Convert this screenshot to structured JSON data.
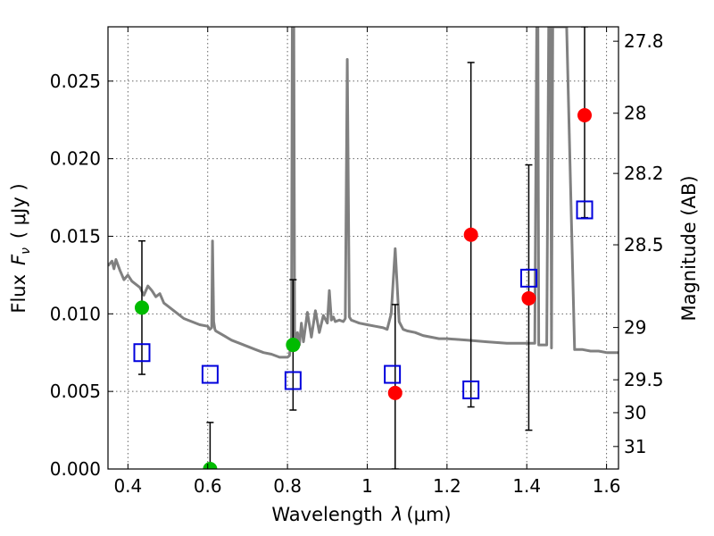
{
  "chart_data": {
    "type": "scatter",
    "xlabel_text": "Wavelength",
    "xlabel_symbol": "λ",
    "xlabel_unit": "(μm)",
    "ylabel_left_text": "Flux",
    "ylabel_left_symbol": "F",
    "ylabel_left_sub": "ν",
    "ylabel_left_unit": "( μJy )",
    "ylabel_right": "Magnitude (AB)",
    "xlim": [
      0.35,
      1.63
    ],
    "ylim": [
      0.0,
      0.0285
    ],
    "grid": true,
    "x_ticks": [
      0.4,
      0.6,
      0.8,
      1.0,
      1.2,
      1.4,
      1.6
    ],
    "x_tick_labels": [
      "0.4",
      "0.6",
      "0.8",
      "1",
      "1.2",
      "1.4",
      "1.6"
    ],
    "y_ticks": [
      0.0,
      0.005,
      0.01,
      0.015,
      0.02,
      0.025
    ],
    "y_tick_labels": [
      "0.000",
      "0.005",
      "0.010",
      "0.015",
      "0.020",
      "0.025"
    ],
    "right_ticks": [
      {
        "label": "27.8",
        "flux": 0.02757
      },
      {
        "label": "28",
        "flux": 0.02293
      },
      {
        "label": "28.2",
        "flux": 0.01905
      },
      {
        "label": "28.5",
        "flux": 0.01445
      },
      {
        "label": "29",
        "flux": 0.00912
      },
      {
        "label": "29.5",
        "flux": 0.00575
      },
      {
        "label": "30",
        "flux": 0.00363
      },
      {
        "label": "31",
        "flux": 0.00145
      }
    ],
    "series": [
      {
        "marker": "circle",
        "color": "#00bb00",
        "points": [
          {
            "x": 0.435,
            "y": 0.0104
          },
          {
            "x": 0.606,
            "y": 0.0
          },
          {
            "x": 0.814,
            "y": 0.008
          }
        ]
      },
      {
        "marker": "circle",
        "color": "#ff0000",
        "points": [
          {
            "x": 1.07,
            "y": 0.0049
          },
          {
            "x": 1.26,
            "y": 0.0151
          },
          {
            "x": 1.405,
            "y": 0.011
          },
          {
            "x": 1.545,
            "y": 0.0228
          }
        ]
      },
      {
        "marker": "open-square",
        "color": "#0000dd",
        "points": [
          {
            "x": 0.435,
            "y": 0.0075
          },
          {
            "x": 0.606,
            "y": 0.0061
          },
          {
            "x": 0.814,
            "y": 0.0057
          },
          {
            "x": 1.063,
            "y": 0.0061
          },
          {
            "x": 1.26,
            "y": 0.0051
          },
          {
            "x": 1.405,
            "y": 0.0123
          },
          {
            "x": 1.545,
            "y": 0.0167
          }
        ]
      }
    ],
    "error_bars": [
      {
        "x": 0.435,
        "low": 0.0061,
        "high": 0.0147
      },
      {
        "x": 0.606,
        "low": 0.0,
        "high": 0.003
      },
      {
        "x": 0.814,
        "low": 0.0038,
        "high": 0.0122
      },
      {
        "x": 1.07,
        "low": 0.0,
        "high": 0.0106
      },
      {
        "x": 1.26,
        "low": 0.004,
        "high": 0.0262
      },
      {
        "x": 1.405,
        "low": 0.0025,
        "high": 0.0196
      },
      {
        "x": 1.545,
        "low": 0.0162,
        "high": 0.0285
      }
    ],
    "model_spectrum": {
      "color": "#808080",
      "x": [
        0.35,
        0.36,
        0.365,
        0.37,
        0.38,
        0.39,
        0.4,
        0.41,
        0.42,
        0.43,
        0.44,
        0.45,
        0.46,
        0.47,
        0.48,
        0.49,
        0.5,
        0.52,
        0.54,
        0.56,
        0.58,
        0.6,
        0.605,
        0.61,
        0.612,
        0.615,
        0.618,
        0.62,
        0.64,
        0.66,
        0.68,
        0.7,
        0.72,
        0.74,
        0.76,
        0.78,
        0.8,
        0.805,
        0.81,
        0.812,
        0.814,
        0.816,
        0.818,
        0.82,
        0.825,
        0.83,
        0.835,
        0.84,
        0.85,
        0.86,
        0.87,
        0.88,
        0.89,
        0.9,
        0.905,
        0.91,
        0.915,
        0.92,
        0.93,
        0.94,
        0.945,
        0.95,
        0.955,
        0.96,
        0.97,
        0.98,
        1.0,
        1.02,
        1.04,
        1.05,
        1.06,
        1.07,
        1.08,
        1.09,
        1.1,
        1.12,
        1.14,
        1.16,
        1.18,
        1.2,
        1.25,
        1.3,
        1.35,
        1.4,
        1.42,
        1.425,
        1.428,
        1.43,
        1.44,
        1.45,
        1.455,
        1.458,
        1.46,
        1.462,
        1.465,
        1.47,
        1.48,
        1.5,
        1.52,
        1.54,
        1.56,
        1.58,
        1.6,
        1.63
      ],
      "y": [
        0.0131,
        0.0134,
        0.0129,
        0.0135,
        0.0128,
        0.0122,
        0.0125,
        0.0121,
        0.0119,
        0.0117,
        0.0112,
        0.0118,
        0.0115,
        0.0111,
        0.0113,
        0.0107,
        0.0105,
        0.0101,
        0.0097,
        0.0095,
        0.0093,
        0.0092,
        0.009,
        0.0091,
        0.0147,
        0.0095,
        0.009,
        0.0089,
        0.0086,
        0.0083,
        0.0081,
        0.0079,
        0.0077,
        0.0075,
        0.0074,
        0.0072,
        0.0072,
        0.0073,
        0.0085,
        0.0285,
        0.0285,
        0.0285,
        0.009,
        0.0078,
        0.0088,
        0.008,
        0.0094,
        0.0082,
        0.0101,
        0.0085,
        0.0102,
        0.0088,
        0.0099,
        0.0094,
        0.0115,
        0.0096,
        0.0098,
        0.0095,
        0.0096,
        0.0095,
        0.0097,
        0.0264,
        0.0098,
        0.0096,
        0.0095,
        0.0094,
        0.0093,
        0.0092,
        0.0091,
        0.009,
        0.01,
        0.0142,
        0.0095,
        0.009,
        0.0089,
        0.0088,
        0.0086,
        0.0085,
        0.0084,
        0.0084,
        0.0083,
        0.0082,
        0.0081,
        0.0081,
        0.0081,
        0.0285,
        0.0285,
        0.008,
        0.008,
        0.008,
        0.0285,
        0.0285,
        0.0285,
        0.0078,
        0.0285,
        0.0285,
        0.0285,
        0.0285,
        0.0077,
        0.0077,
        0.0076,
        0.0076,
        0.0075,
        0.0075
      ]
    }
  }
}
